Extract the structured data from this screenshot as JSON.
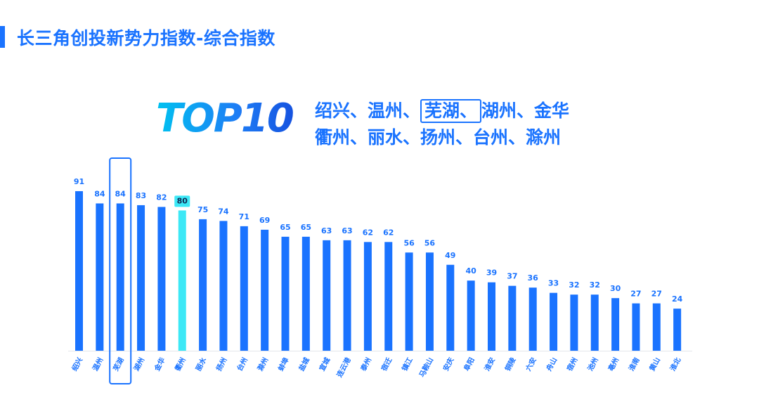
{
  "slide": {
    "title": "长三角创投新势力指数-综合指数"
  },
  "top10": {
    "logo": "TOP10",
    "line1_a": "绍兴、温州、",
    "line1_highlight": "芜湖、",
    "line1_b": "湖州、金华",
    "line2": "衢州、丽水、扬州、台州、滁州"
  },
  "colors": {
    "accent": "#1a73ff",
    "bar": "#1a73ff",
    "bar_highlight": "#3ce8f6",
    "label_highlight_bg": "#3ce8f6"
  },
  "chart_data": {
    "type": "bar",
    "categories": [
      "绍兴",
      "温州",
      "芜湖",
      "湖州",
      "金华",
      "衢州",
      "丽水",
      "扬州",
      "台州",
      "滁州",
      "蚌埠",
      "盐城",
      "宣城",
      "连云港",
      "泰州",
      "宿迁",
      "镇江",
      "马鞍山",
      "安庆",
      "阜阳",
      "淮安",
      "铜陵",
      "六安",
      "舟山",
      "宿州",
      "池州",
      "亳州",
      "淮南",
      "黄山",
      "淮北"
    ],
    "values": [
      91,
      84,
      84,
      83,
      82,
      80,
      75,
      74,
      71,
      69,
      65,
      65,
      63,
      63,
      62,
      62,
      56,
      56,
      49,
      40,
      39,
      37,
      36,
      33,
      32,
      32,
      30,
      27,
      27,
      24
    ],
    "highlight_index": 5,
    "boxed_index": 2,
    "ylim": [
      0,
      100
    ],
    "grid": false,
    "legend": "none",
    "title": "",
    "xlabel": "",
    "ylabel": ""
  }
}
